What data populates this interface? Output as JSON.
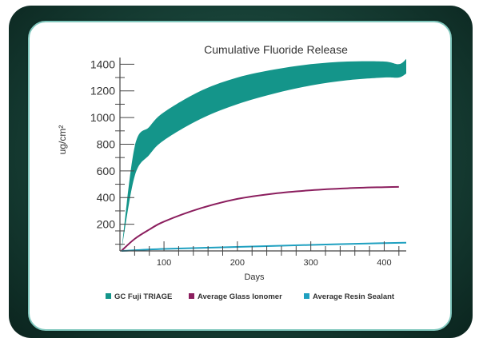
{
  "chart_data": {
    "type": "area",
    "title": "Cumulative Fluoride Release",
    "xlabel": "Days",
    "ylabel": "ug/cm²",
    "xlim": [
      40,
      430
    ],
    "ylim": [
      0,
      1450
    ],
    "x_ticks": [
      100,
      200,
      300,
      400
    ],
    "y_ticks": [
      200,
      400,
      600,
      800,
      1000,
      1200,
      1400
    ],
    "grid": false,
    "legend_position": "bottom",
    "series": [
      {
        "name": "GC Fuji TRIAGE",
        "kind": "band",
        "color": "#14958a",
        "x": [
          42,
          60,
          80,
          100,
          150,
          200,
          250,
          300,
          350,
          400,
          420,
          430
        ],
        "lower": [
          0,
          560,
          720,
          830,
          990,
          1100,
          1180,
          1240,
          1280,
          1300,
          1300,
          1330
        ],
        "upper": [
          0,
          780,
          930,
          1040,
          1200,
          1300,
          1360,
          1400,
          1420,
          1420,
          1400,
          1440
        ]
      },
      {
        "name": "Average Glass Ionomer",
        "kind": "line",
        "color": "#8b1e5e",
        "x": [
          42,
          60,
          80,
          100,
          150,
          200,
          250,
          300,
          350,
          400,
          420
        ],
        "values": [
          0,
          90,
          160,
          220,
          320,
          390,
          430,
          455,
          470,
          478,
          480
        ]
      },
      {
        "name": "Average Resin Sealant",
        "kind": "line",
        "color": "#1fa0c0",
        "x": [
          42,
          100,
          200,
          300,
          400,
          430
        ],
        "values": [
          0,
          15,
          30,
          45,
          58,
          62
        ]
      }
    ]
  }
}
